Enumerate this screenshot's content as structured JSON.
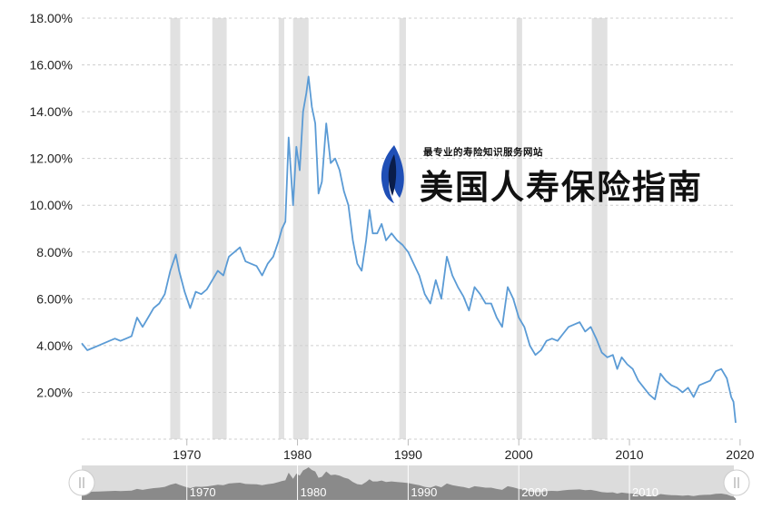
{
  "chart_data": {
    "type": "line",
    "title": "",
    "xlabel": "",
    "ylabel": "",
    "ylim": [
      0,
      18
    ],
    "xlim": [
      1960.5,
      2019.6
    ],
    "grid": "horizontal dashed",
    "legend": "none",
    "y_ticks": [
      {
        "value": 2,
        "label": "2.00%"
      },
      {
        "value": 4,
        "label": "4.00%"
      },
      {
        "value": 6,
        "label": "6.00%"
      },
      {
        "value": 8,
        "label": "8.00%"
      },
      {
        "value": 10,
        "label": "10.00%"
      },
      {
        "value": 12,
        "label": "12.00%"
      },
      {
        "value": 14,
        "label": "14.00%"
      },
      {
        "value": 16,
        "label": "16.00%"
      },
      {
        "value": 18,
        "label": "18.00%"
      }
    ],
    "x_ticks": [
      {
        "value": 1970,
        "label": "1970"
      },
      {
        "value": 1980,
        "label": "1980"
      },
      {
        "value": 1990,
        "label": "1990"
      },
      {
        "value": 2000,
        "label": "2000"
      },
      {
        "value": 2010,
        "label": "2010"
      },
      {
        "value": 2020,
        "label": "2020"
      }
    ],
    "recessions": [
      [
        1968.5,
        1969.4
      ],
      [
        1972.3,
        1973.6
      ],
      [
        1978.3,
        1978.8
      ],
      [
        1979.6,
        1981.0
      ],
      [
        1989.2,
        1989.8
      ],
      [
        1999.8,
        2000.3
      ],
      [
        2006.6,
        2008.0
      ]
    ],
    "series": [
      {
        "color": "#5b9bd5",
        "x": [
          1960.5,
          1961.0,
          1961.5,
          1962.0,
          1962.5,
          1963.0,
          1963.5,
          1964.0,
          1964.5,
          1965.0,
          1965.5,
          1966.0,
          1966.5,
          1967.0,
          1967.5,
          1968.0,
          1968.5,
          1969.0,
          1969.3,
          1969.8,
          1970.3,
          1970.8,
          1971.3,
          1971.8,
          1972.3,
          1972.8,
          1973.3,
          1973.8,
          1974.3,
          1974.8,
          1975.3,
          1975.8,
          1976.3,
          1976.8,
          1977.3,
          1977.8,
          1978.3,
          1978.6,
          1978.9,
          1979.2,
          1979.6,
          1979.9,
          1980.2,
          1980.5,
          1980.8,
          1981.0,
          1981.3,
          1981.6,
          1981.9,
          1982.2,
          1982.6,
          1983.0,
          1983.4,
          1983.8,
          1984.2,
          1984.6,
          1985.0,
          1985.4,
          1985.8,
          1986.2,
          1986.5,
          1986.8,
          1987.2,
          1987.6,
          1988.0,
          1988.5,
          1989.0,
          1989.5,
          1990.0,
          1990.5,
          1991.0,
          1991.5,
          1992.0,
          1992.5,
          1993.0,
          1993.5,
          1994.0,
          1994.5,
          1995.0,
          1995.5,
          1996.0,
          1996.5,
          1997.0,
          1997.5,
          1998.0,
          1998.5,
          1999.0,
          1999.5,
          2000.0,
          2000.5,
          2001.0,
          2001.5,
          2002.0,
          2002.5,
          2003.0,
          2003.5,
          2004.0,
          2004.5,
          2005.0,
          2005.5,
          2006.0,
          2006.5,
          2007.0,
          2007.5,
          2008.0,
          2008.5,
          2008.9,
          2009.3,
          2009.8,
          2010.3,
          2010.8,
          2011.3,
          2011.8,
          2012.3,
          2012.8,
          2013.3,
          2013.8,
          2014.3,
          2014.8,
          2015.3,
          2015.8,
          2016.3,
          2016.8,
          2017.3,
          2017.8,
          2018.3,
          2018.8,
          2019.2,
          2019.4,
          2019.6
        ],
        "values": [
          4.1,
          3.8,
          3.9,
          4.0,
          4.1,
          4.2,
          4.3,
          4.2,
          4.3,
          4.4,
          5.2,
          4.8,
          5.2,
          5.6,
          5.8,
          6.2,
          7.2,
          7.9,
          7.2,
          6.3,
          5.6,
          6.3,
          6.2,
          6.4,
          6.8,
          7.2,
          7.0,
          7.8,
          8.0,
          8.2,
          7.6,
          7.5,
          7.4,
          7.0,
          7.5,
          7.8,
          8.5,
          9.0,
          9.3,
          12.9,
          10.0,
          12.5,
          11.5,
          14.0,
          14.8,
          15.5,
          14.2,
          13.5,
          10.5,
          11.0,
          13.5,
          11.8,
          12.0,
          11.5,
          10.6,
          10.0,
          8.5,
          7.5,
          7.2,
          8.5,
          9.8,
          8.8,
          8.8,
          9.2,
          8.5,
          8.8,
          8.5,
          8.3,
          8.0,
          7.5,
          7.0,
          6.2,
          5.8,
          6.8,
          6.0,
          7.8,
          7.0,
          6.5,
          6.1,
          5.5,
          6.5,
          6.2,
          5.8,
          5.8,
          5.2,
          4.8,
          6.5,
          6.0,
          5.2,
          4.8,
          4.0,
          3.6,
          3.8,
          4.2,
          4.3,
          4.2,
          4.5,
          4.8,
          4.9,
          5.0,
          4.6,
          4.8,
          4.3,
          3.7,
          3.5,
          3.6,
          3.0,
          3.5,
          3.2,
          3.0,
          2.5,
          2.2,
          1.9,
          1.7,
          2.8,
          2.5,
          2.3,
          2.2,
          2.0,
          2.2,
          1.8,
          2.3,
          2.4,
          2.5,
          2.9,
          3.0,
          2.6,
          1.8,
          1.6,
          0.7
        ]
      }
    ]
  }
}
